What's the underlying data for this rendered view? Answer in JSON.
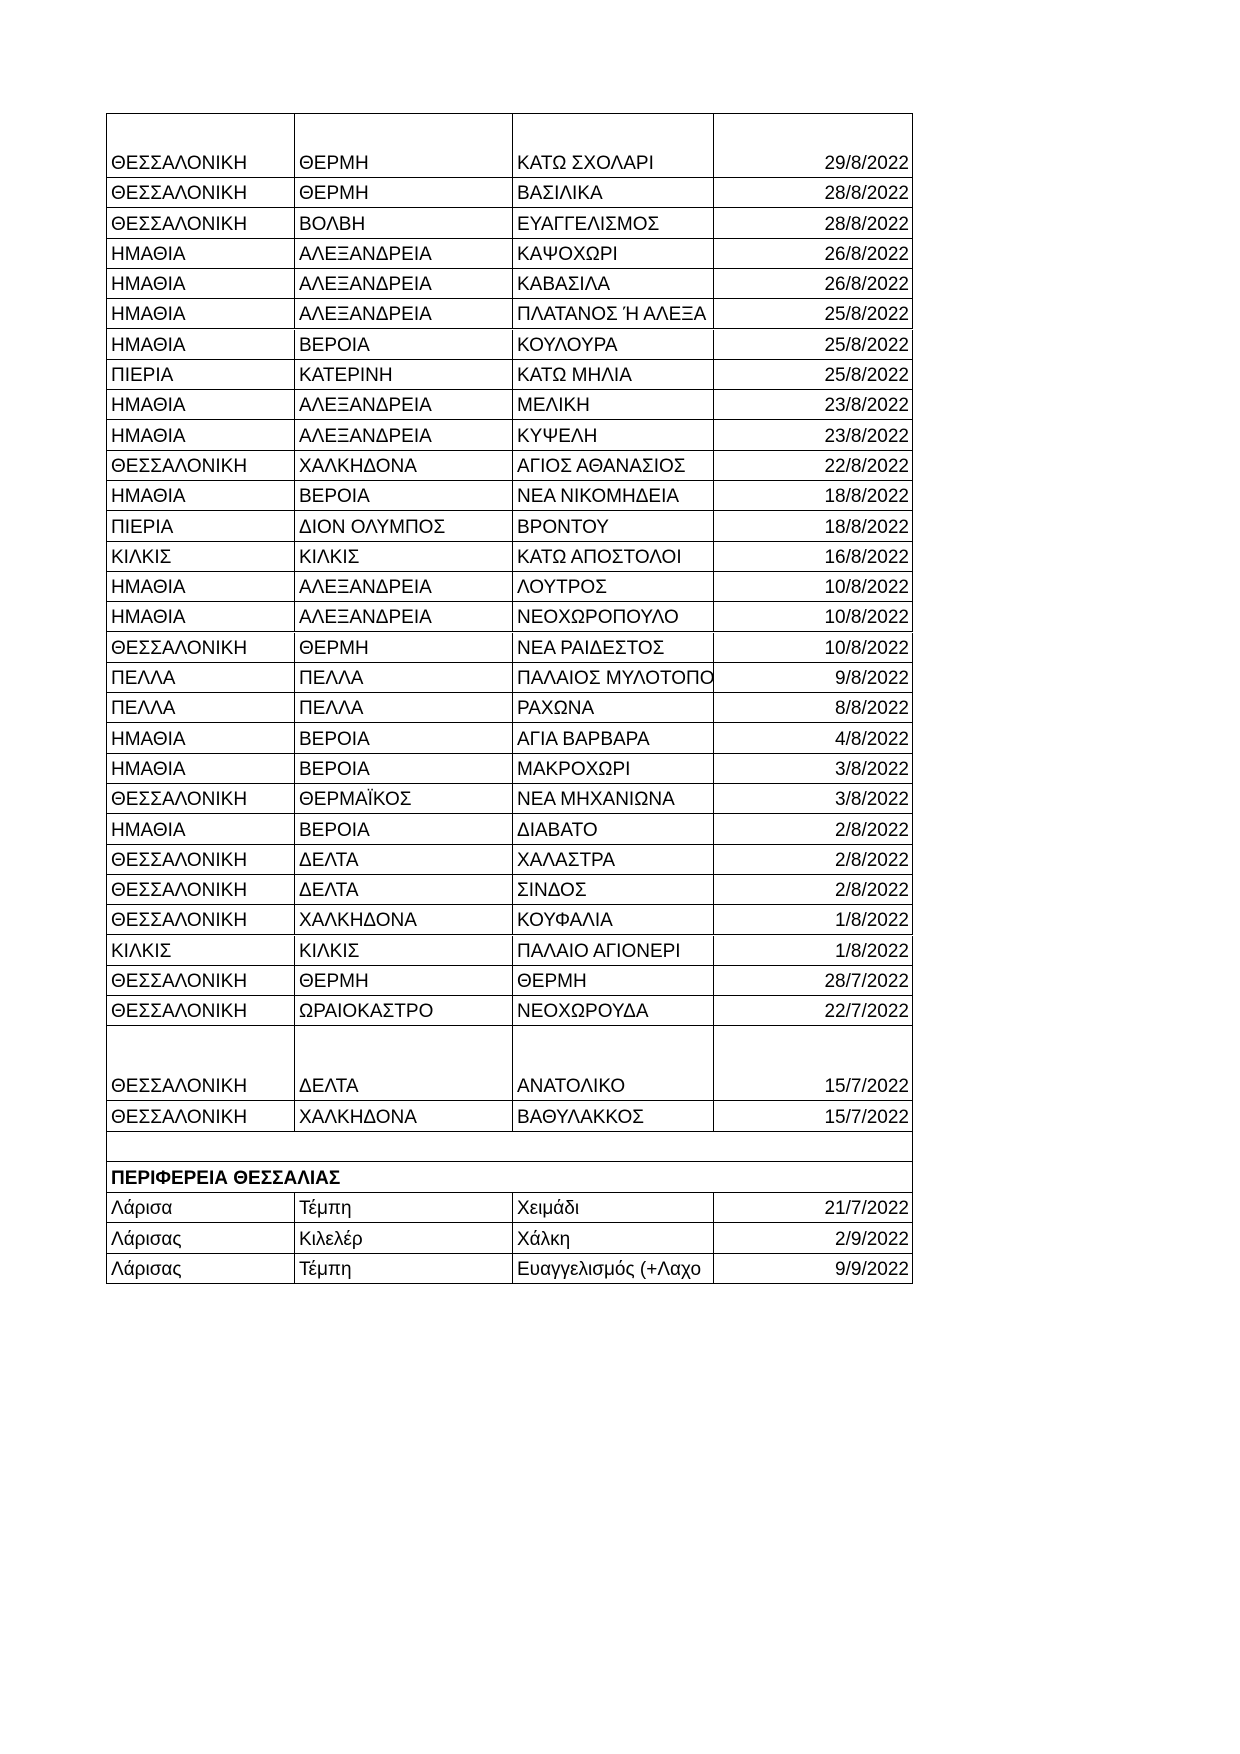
{
  "table": {
    "rows": [
      [
        "ΘΕΣΣΑΛΟΝΙΚΗ",
        "ΘΕΡΜΗ",
        "ΚΑΤΩ ΣΧΟΛΑΡΙ",
        "29/8/2022"
      ],
      [
        "ΘΕΣΣΑΛΟΝΙΚΗ",
        "ΘΕΡΜΗ",
        "ΒΑΣΙΛΙΚΑ",
        "28/8/2022"
      ],
      [
        "ΘΕΣΣΑΛΟΝΙΚΗ",
        "ΒΟΛΒΗ",
        "ΕΥΑΓΓΕΛΙΣΜΟΣ",
        "28/8/2022"
      ],
      [
        "ΗΜΑΘΙΑ",
        "ΑΛΕΞΑΝΔΡΕΙΑ",
        "ΚΑΨΟΧΩΡΙ",
        "26/8/2022"
      ],
      [
        "ΗΜΑΘΙΑ",
        "ΑΛΕΞΑΝΔΡΕΙΑ",
        "ΚΑΒΑΣΙΛΑ",
        "26/8/2022"
      ],
      [
        "ΗΜΑΘΙΑ",
        "ΑΛΕΞΑΝΔΡΕΙΑ",
        "ΠΛΑΤΑΝΟΣ Ή ΑΛΕΞΑ",
        "25/8/2022"
      ],
      [
        "ΗΜΑΘΙΑ",
        "ΒΕΡΟΙΑ",
        "ΚΟΥΛΟΥΡΑ",
        "25/8/2022"
      ],
      [
        "ΠΙΕΡΙΑ",
        "ΚΑΤΕΡΙΝΗ",
        "ΚΑΤΩ ΜΗΛΙΑ",
        "25/8/2022"
      ],
      [
        "ΗΜΑΘΙΑ",
        "ΑΛΕΞΑΝΔΡΕΙΑ",
        "ΜΕΛΙΚΗ",
        "23/8/2022"
      ],
      [
        "ΗΜΑΘΙΑ",
        "ΑΛΕΞΑΝΔΡΕΙΑ",
        "ΚΥΨΕΛΗ",
        "23/8/2022"
      ],
      [
        "ΘΕΣΣΑΛΟΝΙΚΗ",
        "ΧΑΛΚΗΔΟΝΑ",
        "ΑΓΙΟΣ ΑΘΑΝΑΣΙΟΣ",
        "22/8/2022"
      ],
      [
        "ΗΜΑΘΙΑ",
        "ΒΕΡΟΙΑ",
        "ΝΕΑ ΝΙΚΟΜΗΔΕΙΑ",
        "18/8/2022"
      ],
      [
        "ΠΙΕΡΙΑ",
        "ΔΙΟΝ ΟΛΥΜΠΟΣ",
        "ΒΡΟΝΤΟΥ",
        "18/8/2022"
      ],
      [
        "ΚΙΛΚΙΣ",
        "ΚΙΛΚΙΣ",
        "ΚΑΤΩ ΑΠΟΣΤΟΛΟΙ",
        "16/8/2022"
      ],
      [
        "ΗΜΑΘΙΑ",
        "ΑΛΕΞΑΝΔΡΕΙΑ",
        "ΛΟΥΤΡΟΣ",
        "10/8/2022"
      ],
      [
        "ΗΜΑΘΙΑ",
        "ΑΛΕΞΑΝΔΡΕΙΑ",
        "ΝΕΟΧΩΡΟΠΟΥΛΟ",
        "10/8/2022"
      ],
      [
        "ΘΕΣΣΑΛΟΝΙΚΗ",
        "ΘΕΡΜΗ",
        "ΝΕΑ ΡΑΙΔΕΣΤΟΣ",
        "10/8/2022"
      ],
      [
        "ΠΕΛΛΑ",
        "ΠΕΛΛΑ",
        "ΠΑΛΑΙΟΣ ΜΥΛΟΤΟΠΟ",
        "9/8/2022"
      ],
      [
        "ΠΕΛΛΑ",
        "ΠΕΛΛΑ",
        "ΡΑΧΩΝΑ",
        "8/8/2022"
      ],
      [
        "ΗΜΑΘΙΑ",
        "ΒΕΡΟΙΑ",
        "ΑΓΙΑ ΒΑΡΒΑΡΑ",
        "4/8/2022"
      ],
      [
        "ΗΜΑΘΙΑ",
        "ΒΕΡΟΙΑ",
        "ΜΑΚΡΟΧΩΡΙ",
        "3/8/2022"
      ],
      [
        "ΘΕΣΣΑΛΟΝΙΚΗ",
        "ΘΕΡΜΑΪΚΟΣ",
        "ΝΕΑ ΜΗΧΑΝΙΩΝΑ",
        "3/8/2022"
      ],
      [
        "ΗΜΑΘΙΑ",
        "ΒΕΡΟΙΑ",
        "ΔΙΑΒΑΤΟ",
        "2/8/2022"
      ],
      [
        "ΘΕΣΣΑΛΟΝΙΚΗ",
        "ΔΕΛΤΑ",
        "ΧΑΛΑΣΤΡΑ",
        "2/8/2022"
      ],
      [
        "ΘΕΣΣΑΛΟΝΙΚΗ",
        "ΔΕΛΤΑ",
        "ΣΙΝΔΟΣ",
        "2/8/2022"
      ],
      [
        "ΘΕΣΣΑΛΟΝΙΚΗ",
        "ΧΑΛΚΗΔΟΝΑ",
        "ΚΟΥΦΑΛΙΑ",
        "1/8/2022"
      ],
      [
        "ΚΙΛΚΙΣ",
        "ΚΙΛΚΙΣ",
        "ΠΑΛΑΙΟ ΑΓΙΟΝΕΡΙ",
        "1/8/2022"
      ],
      [
        "ΘΕΣΣΑΛΟΝΙΚΗ",
        "ΘΕΡΜΗ",
        "ΘΕΡΜΗ",
        "28/7/2022"
      ],
      [
        "ΘΕΣΣΑΛΟΝΙΚΗ",
        "ΩΡΑΙΟΚΑΣΤΡΟ",
        "ΝΕΟΧΩΡΟΥΔΑ",
        "22/7/2022"
      ],
      [
        "ΘΕΣΣΑΛΟΝΙΚΗ",
        "ΔΕΛΤΑ",
        "ΑΝΑΤΟΛΙΚΟ",
        "15/7/2022"
      ],
      [
        "ΘΕΣΣΑΛΟΝΙΚΗ",
        "ΧΑΛΚΗΔΟΝΑ",
        "ΒΑΘΥΛΑΚΚΟΣ",
        "15/7/2022"
      ]
    ]
  },
  "section": {
    "heading": "ΠΕΡΙΦΕΡΕΙΑ ΘΕΣΣΑΛΙΑΣ",
    "rows": [
      [
        "Λάρισα",
        "Τέμπη",
        "Χειμάδι",
        "21/7/2022"
      ],
      [
        "Λάρισας",
        "Κιλελέρ",
        "Χάλκη",
        "2/9/2022"
      ],
      [
        "Λάρισας",
        "Τέμπη",
        "Ευαγγελισμός (+Λαχο",
        "9/9/2022"
      ]
    ]
  }
}
